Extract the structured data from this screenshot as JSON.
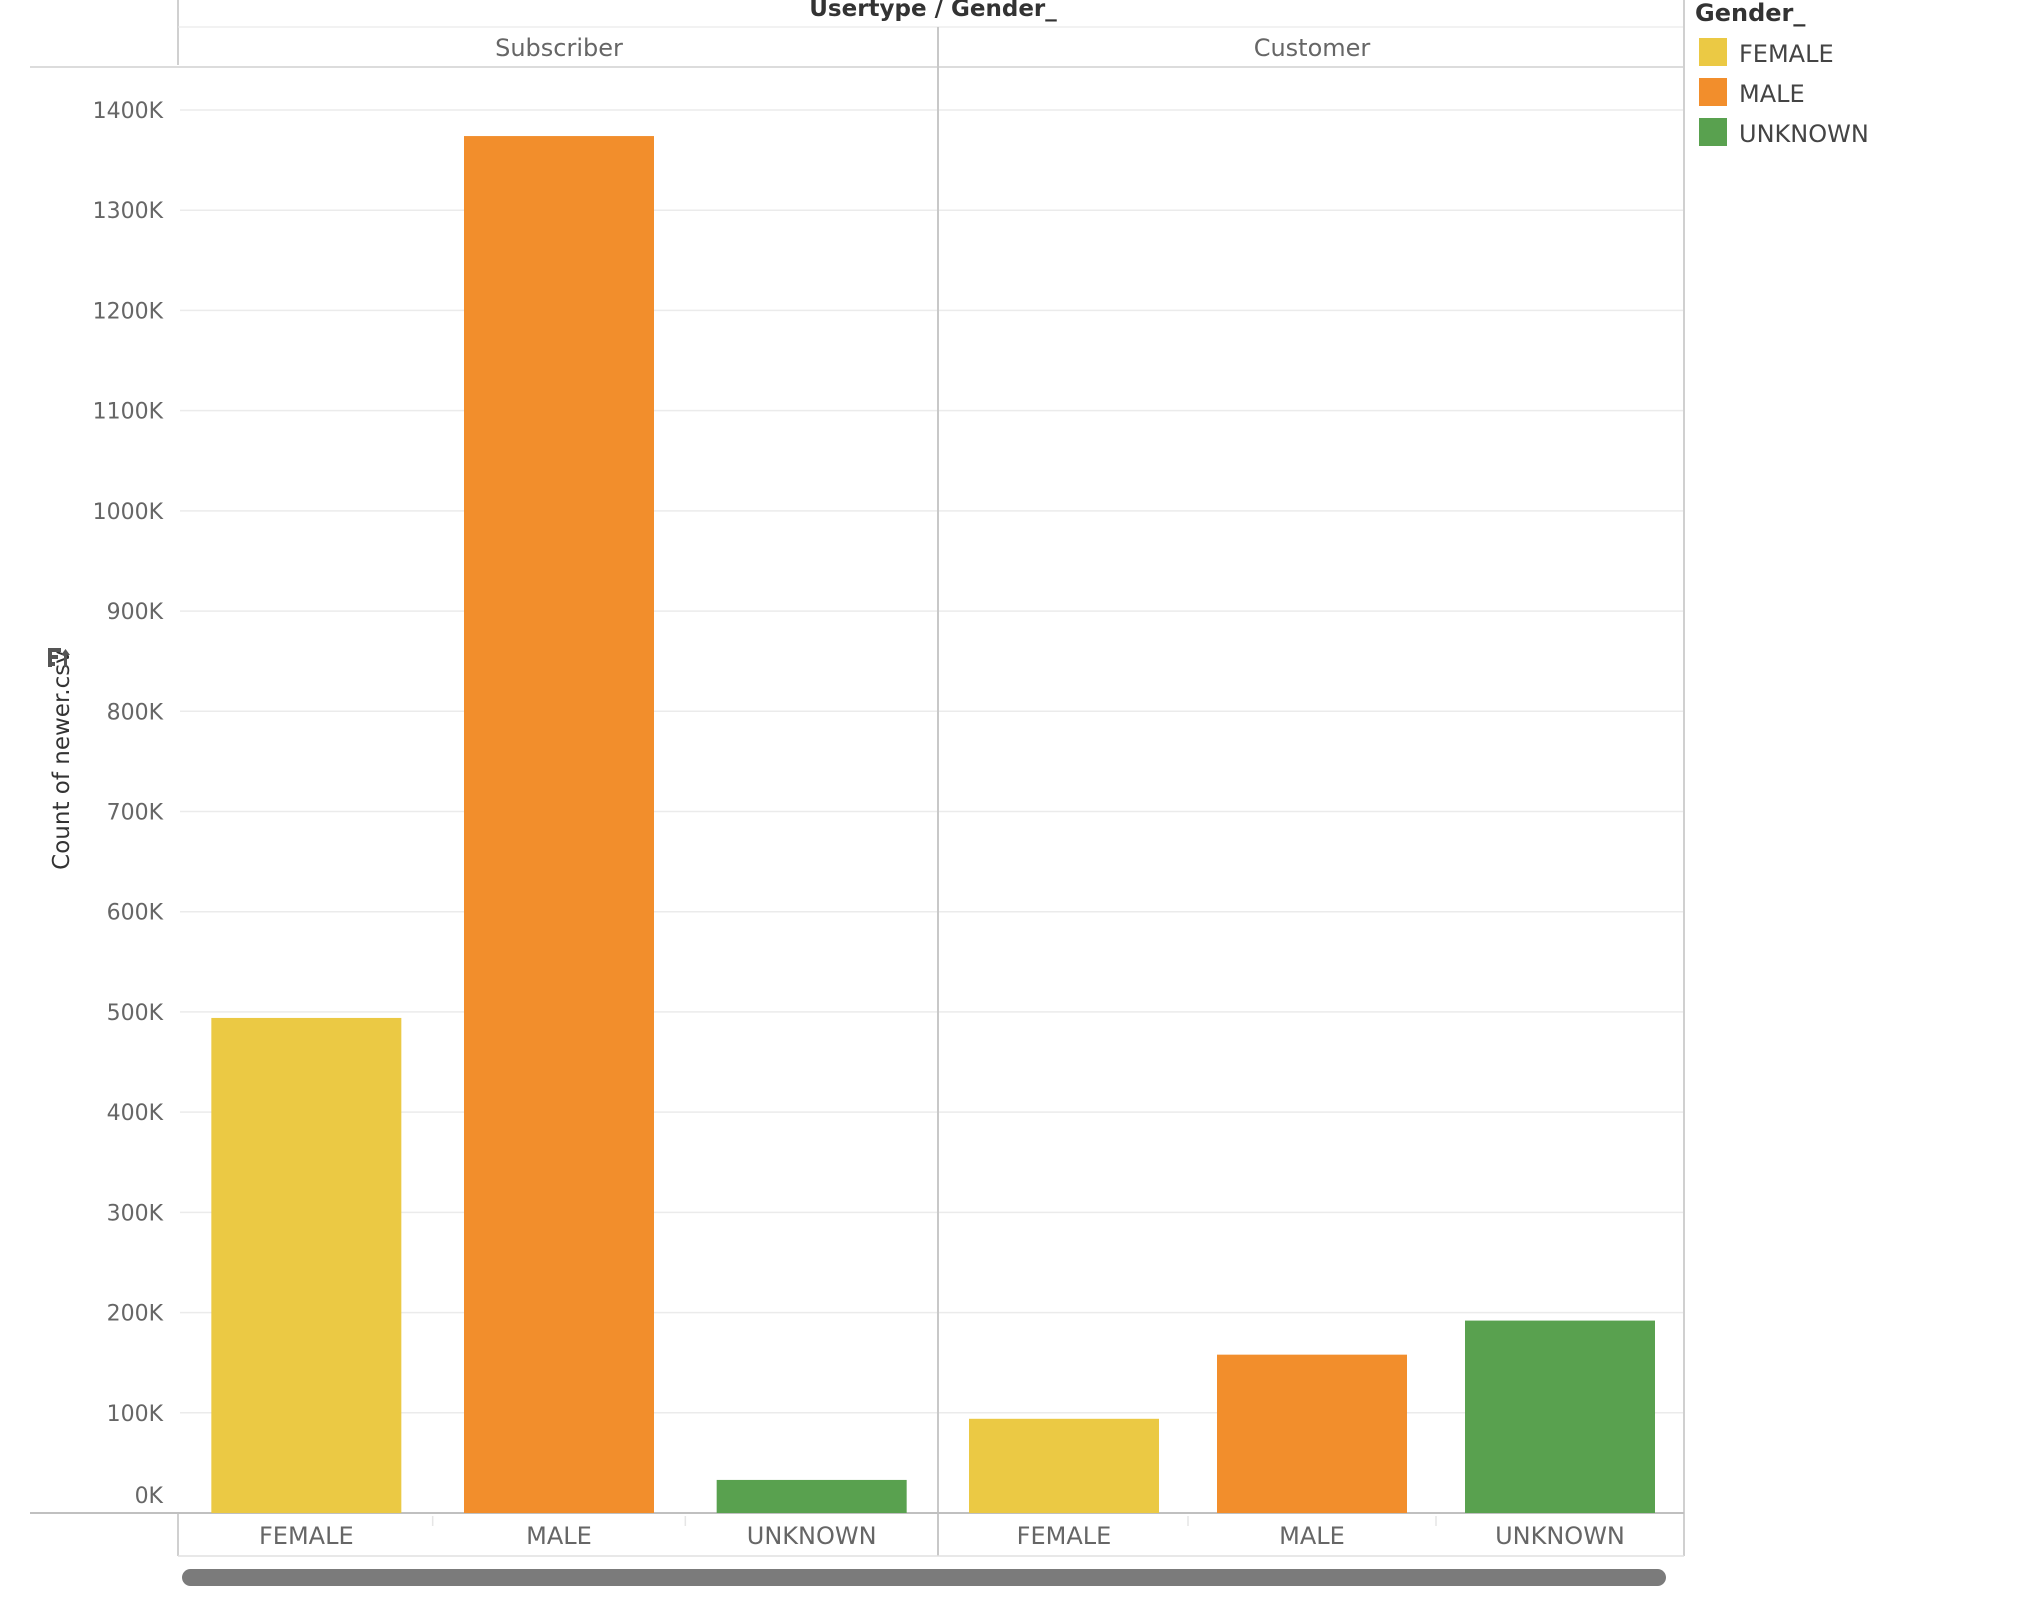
{
  "header": {
    "title": "Usertype / Gender_"
  },
  "legend": {
    "title": "Gender_",
    "items": [
      {
        "label": "FEMALE",
        "color": "#EBC944"
      },
      {
        "label": "MALE",
        "color": "#F28E2C"
      },
      {
        "label": "UNKNOWN",
        "color": "#59A14F"
      }
    ]
  },
  "chart_data": {
    "type": "bar",
    "title": "",
    "header": "Usertype / Gender_",
    "ylabel": "Count of newer.csv",
    "xlabel": "",
    "ylim": [
      0,
      1400000
    ],
    "y_ticks": [
      {
        "value": 0,
        "label": "0K"
      },
      {
        "value": 100000,
        "label": "100K"
      },
      {
        "value": 200000,
        "label": "200K"
      },
      {
        "value": 300000,
        "label": "300K"
      },
      {
        "value": 400000,
        "label": "400K"
      },
      {
        "value": 500000,
        "label": "500K"
      },
      {
        "value": 600000,
        "label": "600K"
      },
      {
        "value": 700000,
        "label": "700K"
      },
      {
        "value": 800000,
        "label": "800K"
      },
      {
        "value": 900000,
        "label": "900K"
      },
      {
        "value": 1000000,
        "label": "1000K"
      },
      {
        "value": 1100000,
        "label": "1100K"
      },
      {
        "value": 1200000,
        "label": "1200K"
      },
      {
        "value": 1300000,
        "label": "1300K"
      },
      {
        "value": 1400000,
        "label": "1400K"
      }
    ],
    "grid": true,
    "legend_position": "top-right",
    "categories": [
      "FEMALE",
      "MALE",
      "UNKNOWN"
    ],
    "panes": [
      {
        "name": "Subscriber",
        "values": [
          494000,
          1374000,
          33000
        ]
      },
      {
        "name": "Customer",
        "values": [
          94000,
          158000,
          192000
        ]
      }
    ],
    "colors": [
      "#EBC944",
      "#F28E2C",
      "#59A14F"
    ]
  }
}
